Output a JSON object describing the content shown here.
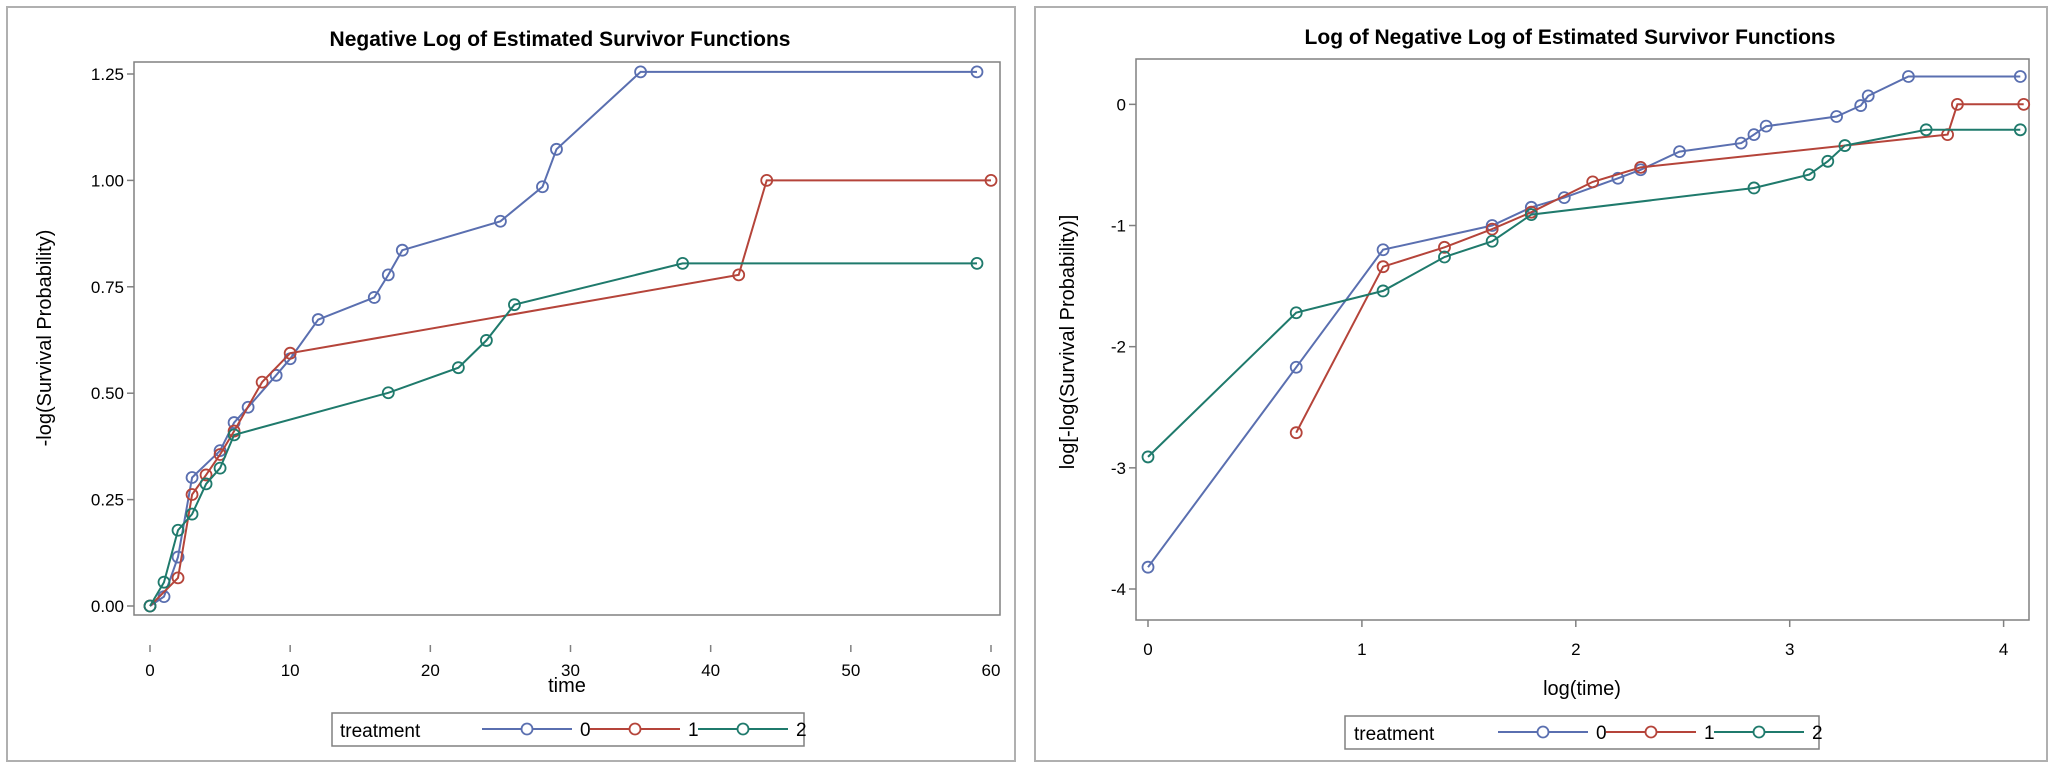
{
  "colors": {
    "0": "#5a6fb0",
    "1": "#b5443a",
    "2": "#1f7a6c"
  },
  "chart_data": [
    {
      "type": "line",
      "title": "Negative Log of Estimated Survivor Functions",
      "xlabel": "time",
      "ylabel": "-log(Survival Probability)",
      "xlim": [
        0,
        60
      ],
      "ylim": [
        0,
        1.25
      ],
      "xticks": [
        "0",
        "10",
        "20",
        "30",
        "40",
        "50",
        "60"
      ],
      "yticks": [
        "0.00",
        "0.25",
        "0.50",
        "0.75",
        "1.00",
        "1.25"
      ],
      "legend_title": "treatment",
      "legend_position": "bottom",
      "series": [
        {
          "name": "0",
          "x": [
            0,
            1,
            2,
            3,
            5,
            6,
            7,
            9,
            10,
            12,
            16,
            17,
            18,
            25,
            28,
            29,
            35,
            59
          ],
          "y": [
            0,
            0.022,
            0.115,
            0.302,
            0.365,
            0.431,
            0.467,
            0.542,
            0.581,
            0.673,
            0.725,
            0.778,
            0.836,
            0.904,
            0.985,
            1.073,
            1.255,
            1.255
          ]
        },
        {
          "name": "1",
          "x": [
            0,
            2,
            3,
            4,
            5,
            6,
            8,
            10,
            42,
            44,
            60
          ],
          "y": [
            0,
            0.066,
            0.262,
            0.308,
            0.356,
            0.411,
            0.526,
            0.594,
            0.778,
            1.0,
            1.0
          ]
        },
        {
          "name": "2",
          "x": [
            0,
            1,
            2,
            3,
            4,
            5,
            6,
            17,
            22,
            24,
            26,
            38,
            59
          ],
          "y": [
            0,
            0.056,
            0.178,
            0.216,
            0.287,
            0.324,
            0.402,
            0.501,
            0.56,
            0.624,
            0.708,
            0.805,
            0.805
          ]
        }
      ]
    },
    {
      "type": "line",
      "title": "Log of Negative Log of Estimated Survivor Functions",
      "xlabel": "log(time)",
      "ylabel": "log[-log(Survival Probability)]",
      "xlim": [
        0,
        4.1
      ],
      "ylim": [
        -4,
        0.3
      ],
      "xticks": [
        "0",
        "1",
        "2",
        "3",
        "4"
      ],
      "yticks": [
        "0",
        "-1",
        "-2",
        "-3",
        "-4"
      ],
      "legend_title": "treatment",
      "legend_position": "bottom",
      "series": [
        {
          "name": "0",
          "x": [
            0,
            0.693,
            1.099,
            1.609,
            1.792,
            1.946,
            2.197,
            2.303,
            2.485,
            2.773,
            2.833,
            2.89,
            3.219,
            3.332,
            3.367,
            3.555,
            4.078
          ],
          "y": [
            -3.82,
            -2.17,
            -1.2,
            -1.0,
            -0.85,
            -0.77,
            -0.61,
            -0.54,
            -0.39,
            -0.32,
            -0.25,
            -0.18,
            -0.1,
            -0.01,
            0.07,
            0.23,
            0.23
          ]
        },
        {
          "name": "1",
          "x": [
            0.693,
            1.099,
            1.386,
            1.609,
            1.792,
            2.079,
            2.303,
            3.738,
            3.784,
            4.094
          ],
          "y": [
            -2.71,
            -1.34,
            -1.18,
            -1.03,
            -0.89,
            -0.64,
            -0.52,
            -0.25,
            0.0,
            0.0
          ]
        },
        {
          "name": "2",
          "x": [
            0,
            0.693,
            1.099,
            1.386,
            1.609,
            1.792,
            2.833,
            3.091,
            3.178,
            3.258,
            3.638,
            4.078
          ],
          "y": [
            -2.91,
            -1.72,
            -1.54,
            -1.26,
            -1.13,
            -0.91,
            -0.69,
            -0.58,
            -0.47,
            -0.34,
            -0.21,
            -0.21
          ]
        }
      ]
    }
  ]
}
